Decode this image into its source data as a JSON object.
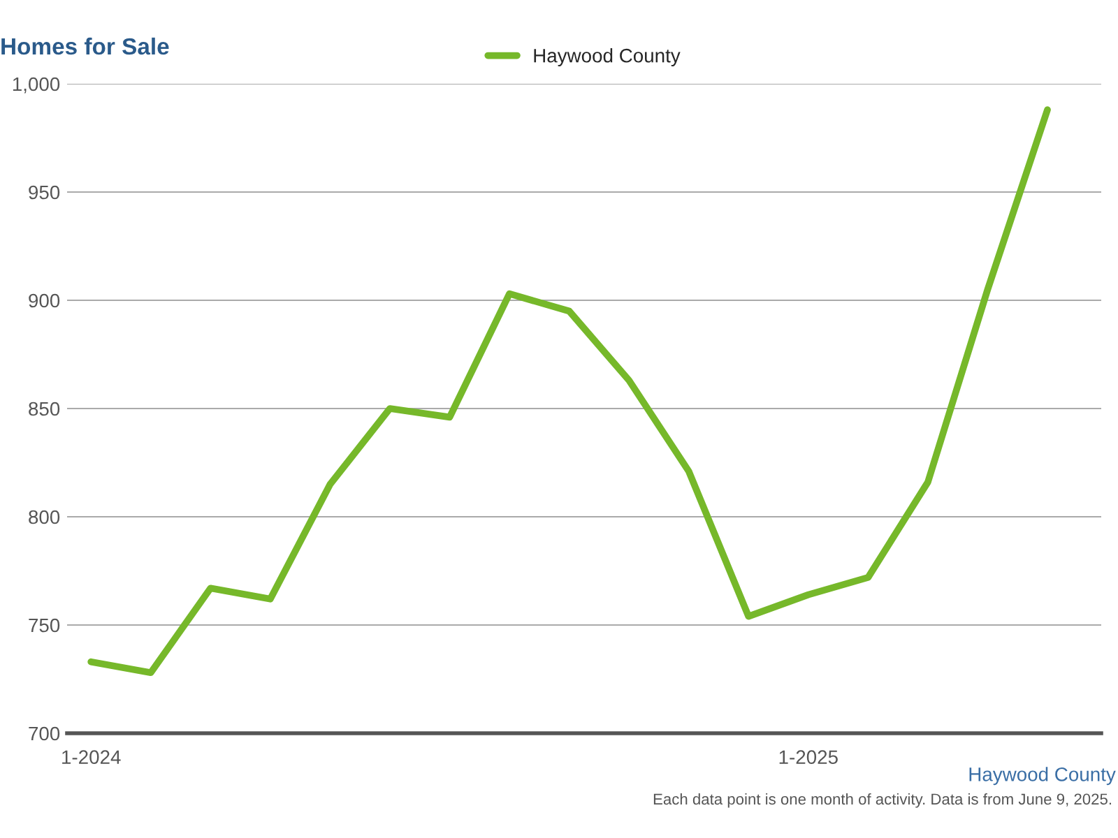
{
  "chart_data": {
    "type": "line",
    "title": "Homes for Sale",
    "categories": [
      "1-2024",
      null,
      null,
      null,
      null,
      null,
      null,
      null,
      null,
      null,
      null,
      null,
      "1-2025",
      null,
      null,
      null,
      null
    ],
    "series": [
      {
        "name": "Haywood County",
        "color": "#76b82a",
        "values": [
          733,
          728,
          767,
          762,
          815,
          850,
          846,
          903,
          895,
          863,
          821,
          754,
          764,
          772,
          816,
          905,
          988
        ]
      }
    ],
    "ylim": [
      700,
      1000
    ],
    "yticks": [
      700,
      750,
      800,
      850,
      900,
      950,
      {
        "value": 1000,
        "label": "1,000"
      }
    ],
    "grid": "y",
    "legend": "top",
    "marker": "none",
    "line_style": "solid",
    "annotations": [
      "Haywood County",
      "Each data point is one month of activity. Data is from June 9, 2025."
    ]
  }
}
